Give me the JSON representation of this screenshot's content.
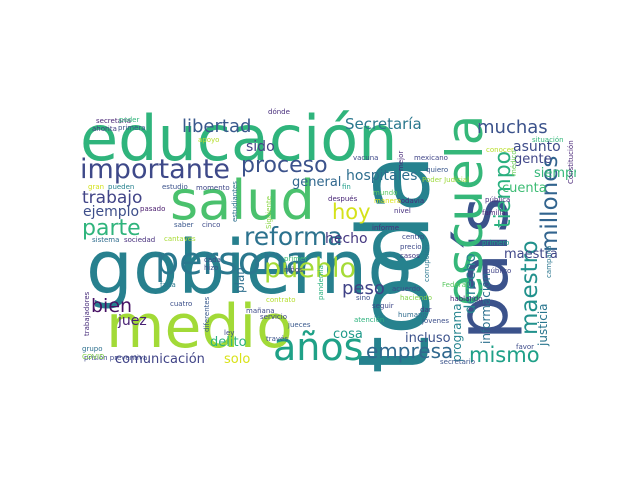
{
  "words": [
    {
      "text": "educación",
      "color": "#2fb47c"
    },
    {
      "text": "gobierno",
      "color": "#27808e"
    },
    {
      "text": "toda",
      "color": "#26828e"
    },
    {
      "text": "país",
      "color": "#3b528b"
    },
    {
      "text": "escuela",
      "color": "#35b779"
    },
    {
      "text": "medio",
      "color": "#a2da37"
    },
    {
      "text": "salud",
      "color": "#4ac16d"
    },
    {
      "text": "persona",
      "color": "#2a788e"
    },
    {
      "text": "años",
      "color": "#1fa187"
    },
    {
      "text": "importante",
      "color": "#3e4989"
    },
    {
      "text": "pueblo",
      "color": "#a5db36"
    },
    {
      "text": "reforma",
      "color": "#2c728e"
    },
    {
      "text": "millones",
      "color": "#32648e"
    },
    {
      "text": "tiempo",
      "color": "#2ab07f"
    },
    {
      "text": "maestro",
      "color": "#21918c"
    },
    {
      "text": "proceso",
      "color": "#3b528b"
    },
    {
      "text": "empresa",
      "color": "#30688e"
    },
    {
      "text": "hoy",
      "color": "#d5e21a"
    },
    {
      "text": "parte",
      "color": "#2fb47c"
    },
    {
      "text": "mismo",
      "color": "#1fa088"
    },
    {
      "text": "libertad",
      "color": "#38588c"
    },
    {
      "text": "muchas",
      "color": "#3b528b"
    },
    {
      "text": "Secretaría",
      "color": "#2a788e"
    },
    {
      "text": "trabajo",
      "color": "#414487"
    },
    {
      "text": "derecho",
      "color": "#25848e"
    },
    {
      "text": "bien",
      "color": "#471164"
    },
    {
      "text": "peso",
      "color": "#404387"
    },
    {
      "text": "hospitales",
      "color": "#2e6e8e"
    },
    {
      "text": "hecho",
      "color": "#453781"
    },
    {
      "text": "ejemplo",
      "color": "#3d4e8a"
    },
    {
      "text": "juez",
      "color": "#482173"
    },
    {
      "text": "sido",
      "color": "#424186"
    },
    {
      "text": "general",
      "color": "#31688e"
    },
    {
      "text": "maestra",
      "color": "#3f4788"
    },
    {
      "text": "información",
      "color": "#2d708e"
    },
    {
      "text": "programa",
      "color": "#25848e"
    },
    {
      "text": "asunto",
      "color": "#3e4c8a"
    },
    {
      "text": "gente",
      "color": "#404688"
    },
    {
      "text": "cuenta",
      "color": "#3dbc74"
    },
    {
      "text": "siempre",
      "color": "#35b779"
    },
    {
      "text": "comunicación",
      "color": "#414487"
    },
    {
      "text": "cosa",
      "color": "#1f9a8a"
    },
    {
      "text": "incluso",
      "color": "#3b518b"
    },
    {
      "text": "delito",
      "color": "#2db27d"
    },
    {
      "text": "justicia",
      "color": "#2a768e"
    },
    {
      "text": "solo",
      "color": "#d8e219"
    },
    {
      "text": "plan",
      "color": "#2e6f8e"
    },
    {
      "text": "secretaria",
      "color": "#482475"
    },
    {
      "text": "poder",
      "color": "#31b57b"
    },
    {
      "text": "ahorita",
      "color": "#433d84"
    },
    {
      "text": "primera",
      "color": "#3b528b"
    },
    {
      "text": "dónde",
      "color": "#472d7b"
    },
    {
      "text": "apoyo",
      "color": "#b5de2b"
    },
    {
      "text": "conocer",
      "color": "#b8de29"
    },
    {
      "text": "situación",
      "color": "#34b679"
    },
    {
      "text": "Constitución",
      "color": "#482677"
    },
    {
      "text": "médico",
      "color": "#6ece58"
    },
    {
      "text": "vacuna",
      "color": "#3e4a89"
    },
    {
      "text": "mexicano",
      "color": "#404588"
    },
    {
      "text": "quiero",
      "color": "#39568c"
    },
    {
      "text": "mejor",
      "color": "#482979"
    },
    {
      "text": "Poder Judicial",
      "color": "#9dd93b"
    },
    {
      "text": "pública",
      "color": "#46327e"
    },
    {
      "text": "familia",
      "color": "#482979"
    },
    {
      "text": "nivel",
      "color": "#46307e"
    },
    {
      "text": "todavía",
      "color": "#472e7c"
    },
    {
      "text": "informe",
      "color": "#472d7b"
    },
    {
      "text": "centro",
      "color": "#3e4989"
    },
    {
      "text": "gran",
      "color": "#d2e21b"
    },
    {
      "text": "pueden",
      "color": "#26818e"
    },
    {
      "text": "estudio",
      "color": "#3b528b"
    },
    {
      "text": "momento",
      "color": "#3f4889"
    },
    {
      "text": "estudiantes",
      "color": "#2d708e"
    },
    {
      "text": "Siguiente",
      "color": "#8bd646"
    },
    {
      "text": "mundo",
      "color": "#5ec962"
    },
    {
      "text": "manera",
      "color": "#dde318"
    },
    {
      "text": "fin",
      "color": "#1f9e89"
    },
    {
      "text": "después",
      "color": "#482576"
    },
    {
      "text": "saber",
      "color": "#39568c"
    },
    {
      "text": "cinco",
      "color": "#3e4a89"
    },
    {
      "text": "pasado",
      "color": "#481a6c"
    },
    {
      "text": "sistema",
      "color": "#2f6c8e"
    },
    {
      "text": "sociedad",
      "color": "#472f7d"
    },
    {
      "text": "cantaves",
      "color": "#a8db34"
    },
    {
      "text": "cada",
      "color": "#3c4f8a"
    },
    {
      "text": "hizo",
      "color": "#3b528b"
    },
    {
      "text": "primero",
      "color": "#1fa188"
    },
    {
      "text": "público",
      "color": "#404387"
    },
    {
      "text": "campaña",
      "color": "#2a768e"
    },
    {
      "text": "Federal",
      "color": "#5cc863"
    },
    {
      "text": "hablando",
      "color": "#482979"
    },
    {
      "text": "casos",
      "color": "#453882"
    },
    {
      "text": "precio",
      "color": "#3e4a89"
    },
    {
      "text": "corrupción",
      "color": "#2a778e"
    },
    {
      "text": "niños",
      "color": "#433e85"
    },
    {
      "text": "primer",
      "color": "#40bd72"
    },
    {
      "text": "pandemia",
      "color": "#2ab07f"
    },
    {
      "text": "falta",
      "color": "#2a788e"
    },
    {
      "text": "cuatro",
      "color": "#3c4f8a"
    },
    {
      "text": "mañana",
      "color": "#3e4a89"
    },
    {
      "text": "contrato",
      "color": "#b5de2b"
    },
    {
      "text": "servicio",
      "color": "#3f4788"
    },
    {
      "text": "jueces",
      "color": "#38588c"
    },
    {
      "text": "sino",
      "color": "#3c4f8a"
    },
    {
      "text": "seguir",
      "color": "#3f4889"
    },
    {
      "text": "acuerdo",
      "color": "#3e4c8a"
    },
    {
      "text": "haciendo",
      "color": "#84d44b"
    },
    {
      "text": "humano",
      "color": "#2f6c8e"
    },
    {
      "text": "dar",
      "color": "#433e85"
    },
    {
      "text": "jóvenes",
      "color": "#3c4f8a"
    },
    {
      "text": "atención",
      "color": "#2db27d"
    },
    {
      "text": "trabajadores",
      "color": "#472c7a"
    },
    {
      "text": "diferentes",
      "color": "#38588c"
    },
    {
      "text": "ley",
      "color": "#3e4989"
    },
    {
      "text": "través",
      "color": "#3b528b"
    },
    {
      "text": "favor",
      "color": "#3e4c8a"
    },
    {
      "text": "grupo",
      "color": "#2d708e"
    },
    {
      "text": "prisión preventiva",
      "color": "#3e4989"
    },
    {
      "text": "COVID",
      "color": "#84d44b"
    },
    {
      "text": "secretario",
      "color": "#3a538b"
    }
  ]
}
